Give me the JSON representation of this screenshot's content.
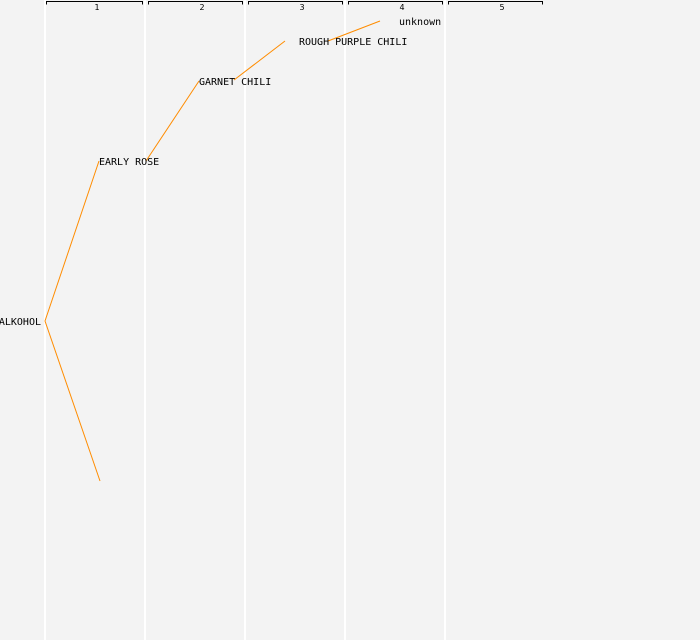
{
  "columns": [
    "1",
    "2",
    "3",
    "4",
    "5"
  ],
  "nodes": {
    "root": "ALKOHOL",
    "n1": "EARLY ROSE",
    "n2": "GARNET CHILI",
    "n3": "ROUGH PURPLE CHILI",
    "n4": "unknown"
  },
  "colors": {
    "edge": "#ff8c00",
    "background": "#f3f3f3"
  }
}
